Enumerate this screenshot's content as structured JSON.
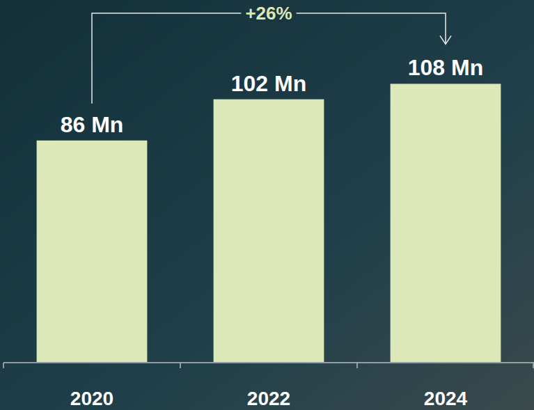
{
  "chart_data": {
    "type": "bar",
    "categories": [
      "2020",
      "2022",
      "2024"
    ],
    "values": [
      86,
      102,
      108
    ],
    "value_labels": [
      "86 Mn",
      "102 Mn",
      "108 Mn"
    ],
    "data_labels": true,
    "color": "#dde8b9",
    "ylim": [
      0,
      140
    ],
    "tick_labels": "x",
    "grid": false,
    "annotation": "+26%"
  }
}
